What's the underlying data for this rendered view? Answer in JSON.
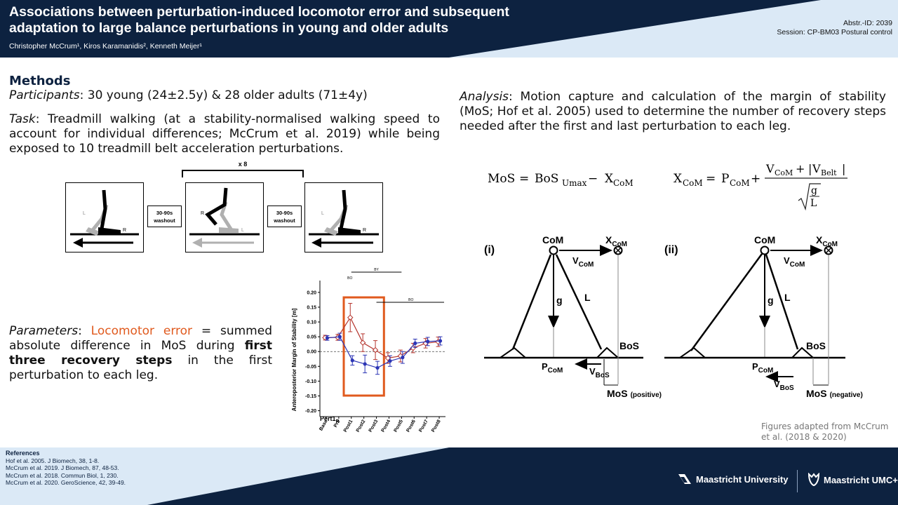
{
  "header": {
    "title": "Associations between perturbation-induced locomotor error and subsequent\nadaptation to large balance perturbations in young and older adults",
    "authors": "Christopher McCrum¹, Kiros Karamanidis², Kenneth Meijer¹",
    "abstract_id": "Abstr.-ID: 2039",
    "session": "Session: CP-BM03 Postural control"
  },
  "methods": {
    "heading": "Methods",
    "participants_label": "Participants",
    "participants_text": ": 30 young (24±2.5y) & 28 older adults  (71±4y)",
    "task_label": "Task",
    "task_text": ": Treadmill walking (at a stability-normalised walking speed to account for individual differences; McCrum et al. 2019) while being exposed to 10 treadmill belt acceleration perturbations."
  },
  "protocol_figure": {
    "repeat_label": "x 8",
    "washout_line1": "30-90s",
    "washout_line2": "washout",
    "leg_left": "L",
    "leg_right": "R"
  },
  "parameters": {
    "label": "Parameters",
    "colon": ": ",
    "term": "Locomotor error",
    "text_a": " = summed absolute difference in MoS during ",
    "bold_text": "first three recovery steps",
    "text_b": " in the first perturbation to each leg."
  },
  "analysis": {
    "label": "Analysis",
    "text": ": Motion capture and calculation of the margin of stability (MoS; Hof et al. 2005) used to determine the number of recovery steps needed after the first and last perturbation to each leg."
  },
  "equations": {
    "mos_lhs": "MoS",
    "equals": "=",
    "bos": "BoS",
    "bos_sub": "Umax",
    "minus": "−",
    "x": "X",
    "com_sub": "CoM",
    "p": "P",
    "plus": "+",
    "v": "V",
    "belt_sub": "Belt",
    "g": "g",
    "l": "L"
  },
  "mos_diagrams": {
    "panel_i": "(i)",
    "panel_ii": "(ii)",
    "com": "CoM",
    "x": "X",
    "com_sub": "CoM",
    "v": "V",
    "g": "g",
    "l": "L",
    "bos": "BoS",
    "p": "P",
    "bos_sub": "BoS",
    "mos": "MoS",
    "positive": "(positive)",
    "negative": "(negative)"
  },
  "figure_credit": "Figures adapted from McCrum et al. (2018 & 2020)",
  "chart_data": {
    "type": "line",
    "ylabel": "Anteroposterior Margin of Stability [m]",
    "ylim": [
      -0.22,
      0.24
    ],
    "yticks": [
      "0.20",
      "0.15",
      "0.10",
      "0.05",
      "0.00",
      "-0.05",
      "-0.10",
      "-0.15",
      "-0.20"
    ],
    "categories": [
      "Base",
      "Pre",
      "Post1",
      "Post2",
      "Post3",
      "Post4",
      "Post5",
      "Post6",
      "Post7",
      "Post8"
    ],
    "panel_label": "Pert1",
    "panel_label_sub": "R",
    "sig_labels": [
      "BY",
      "BO",
      "BO"
    ],
    "highlight_categories": [
      "Post1",
      "Post2",
      "Post3"
    ],
    "highlight_color": "#e05a1e",
    "series": [
      {
        "color": "#b5352e",
        "values": [
          0.047,
          0.048,
          0.115,
          0.03,
          0.005,
          -0.022,
          -0.015,
          0.012,
          0.028,
          0.033
        ],
        "errors": [
          0.008,
          0.01,
          0.048,
          0.03,
          0.032,
          0.018,
          0.02,
          0.016,
          0.016,
          0.016
        ]
      },
      {
        "color": "#2c35b5",
        "values": [
          0.046,
          0.05,
          -0.03,
          -0.042,
          -0.055,
          -0.032,
          -0.02,
          0.028,
          0.034,
          0.036
        ],
        "errors": [
          0.008,
          0.012,
          0.016,
          0.03,
          0.022,
          0.018,
          0.02,
          0.014,
          0.014,
          0.014
        ]
      }
    ]
  },
  "references": {
    "heading": "References",
    "items": [
      "Hof et al. 2005. J Biomech, 38, 1-8.",
      "McCrum et al. 2019. J Biomech, 87, 48-53.",
      "McCrum et al. 2018. Commun Biol, 1, 230.",
      "McCrum et al. 2020. GeroScience, 42, 39-49."
    ]
  },
  "logos": {
    "mu": "Maastricht University",
    "umc": "Maastricht UMC+"
  },
  "colors": {
    "navy": "#0d2240",
    "light_blue": "#dbe9f6",
    "orange": "#e05a1e"
  }
}
